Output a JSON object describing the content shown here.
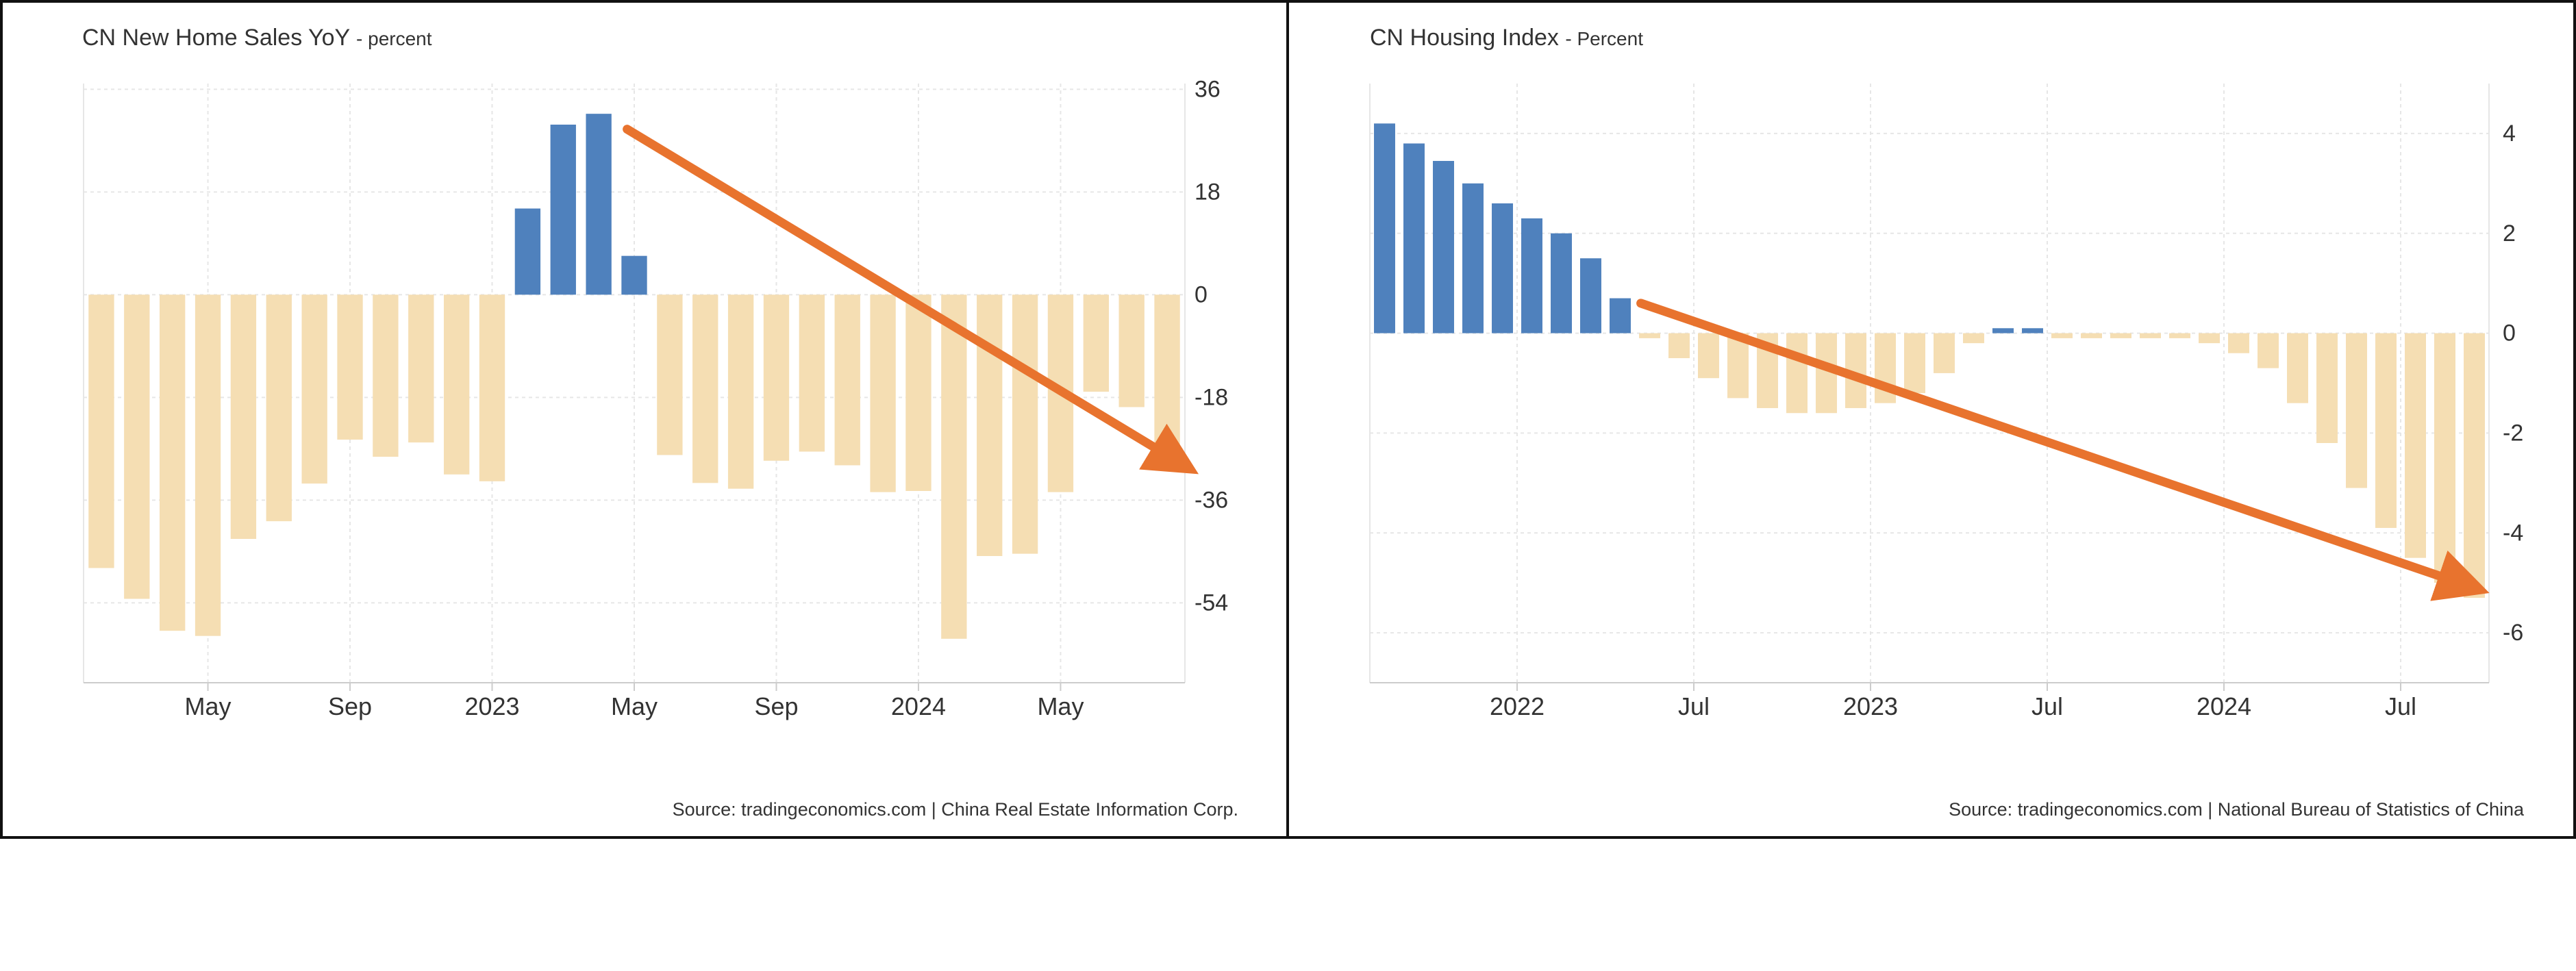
{
  "colors": {
    "positive": "#4f81bd",
    "negative": "#f5deb3",
    "arrow": "#e8732e",
    "grid": "#e6e6e6"
  },
  "chart_data": [
    {
      "type": "bar",
      "title": "CN New Home Sales YoY",
      "unit": "- percent",
      "source": "Source: tradingeconomics.com | China Real Estate Information Corp.",
      "values": [
        -47.9,
        -53.3,
        -58.9,
        -59.8,
        -42.8,
        -39.7,
        -33.1,
        -25.4,
        -28.4,
        -25.9,
        -31.5,
        -32.7,
        15.1,
        29.8,
        31.7,
        6.8,
        -28.1,
        -33.0,
        -34.0,
        -29.1,
        -27.5,
        -29.9,
        -34.6,
        -34.4,
        -60.3,
        -45.8,
        -45.4,
        -34.6,
        -17.0,
        -19.7,
        -30.0
      ],
      "ylim": [
        -68,
        37
      ],
      "yticks": [
        "36",
        "18",
        "0",
        "-18",
        "-36",
        "-54"
      ],
      "ytick_values": [
        36,
        18,
        0,
        -18,
        -36,
        -54
      ],
      "xtick_labels": [
        "May",
        "Sep",
        "2023",
        "May",
        "Sep",
        "2024",
        "May"
      ],
      "xtick_index": [
        3.5,
        7.5,
        11.5,
        15.5,
        19.5,
        23.5,
        27.5
      ],
      "trend_arrow": {
        "from": [
          14.8,
          29
        ],
        "to": [
          30.5,
          -30
        ]
      }
    },
    {
      "type": "bar",
      "title": "CN Housing Index",
      "unit": "- Percent",
      "source": "Source: tradingeconomics.com | National Bureau of Statistics of China",
      "values": [
        4.2,
        3.8,
        3.45,
        3.0,
        2.6,
        2.3,
        2.0,
        1.5,
        0.7,
        -0.1,
        -0.5,
        -0.9,
        -1.3,
        -1.5,
        -1.6,
        -1.6,
        -1.5,
        -1.4,
        -1.2,
        -0.8,
        -0.2,
        0.1,
        0.1,
        -0.1,
        -0.1,
        -0.1,
        -0.1,
        -0.1,
        -0.2,
        -0.4,
        -0.7,
        -1.4,
        -2.2,
        -3.1,
        -3.9,
        -4.5,
        -5.0,
        -5.3
      ],
      "ylim": [
        -7,
        5
      ],
      "yticks": [
        "4",
        "2",
        "0",
        "-2",
        "-4",
        "-6"
      ],
      "ytick_values": [
        4,
        2,
        0,
        -2,
        -4,
        -6
      ],
      "xtick_labels": [
        "2022",
        "Jul",
        "2023",
        "Jul",
        "2024",
        "Jul"
      ],
      "xtick_index": [
        5,
        11,
        17,
        23,
        29,
        35
      ],
      "trend_arrow": {
        "from": [
          8.7,
          0.6
        ],
        "to": [
          37.0,
          -5.1
        ]
      }
    }
  ]
}
